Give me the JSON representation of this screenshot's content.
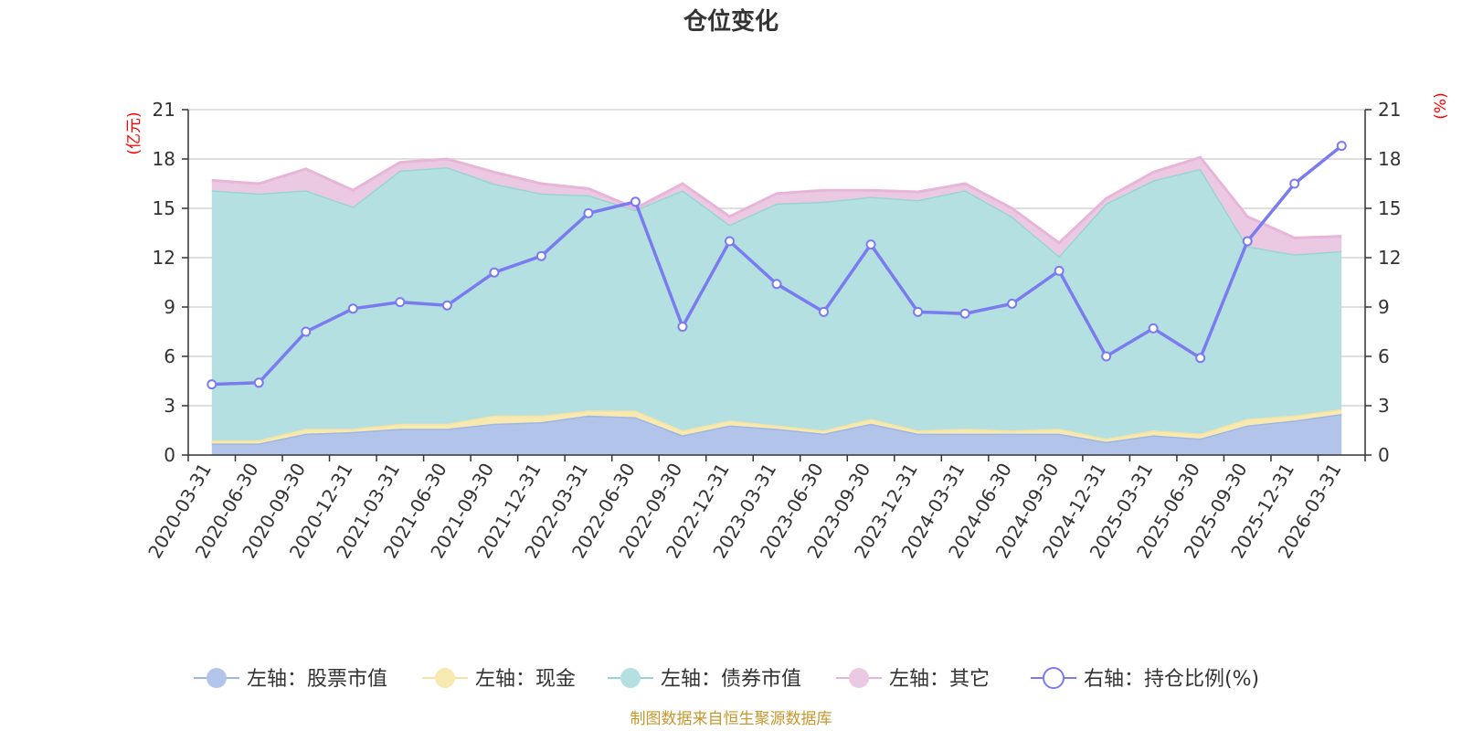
{
  "chart_data": {
    "type": "area",
    "title": "仓位变化",
    "left_axis_unit": "(亿元)",
    "right_axis_unit": "(%)",
    "ylim_left": [
      0,
      21
    ],
    "ylim_right": [
      0,
      21
    ],
    "yticks": [
      0,
      3,
      6,
      9,
      12,
      15,
      18,
      21
    ],
    "categories": [
      "2020-03-31",
      "2020-06-30",
      "2020-09-30",
      "2020-12-31",
      "2021-03-31",
      "2021-06-30",
      "2021-09-30",
      "2021-12-31",
      "2022-03-31",
      "2022-06-30",
      "2022-09-30",
      "2022-12-31",
      "2023-03-31",
      "2023-06-30",
      "2023-09-30",
      "2023-12-31",
      "2024-03-31",
      "2024-06-30",
      "2024-09-30",
      "2024-12-31",
      "2025-03-31",
      "2025-06-30",
      "2025-09-30",
      "2025-12-31",
      "2026-03-31"
    ],
    "series": [
      {
        "name": "左轴：股票市值",
        "axis": "left",
        "color": "#9eb6e3",
        "fill": "#b2c4ea",
        "values": [
          0.7,
          0.7,
          1.3,
          1.4,
          1.6,
          1.6,
          1.9,
          2.0,
          2.4,
          2.3,
          1.2,
          1.8,
          1.6,
          1.3,
          1.9,
          1.3,
          1.3,
          1.3,
          1.3,
          0.8,
          1.2,
          1.0,
          1.8,
          2.1,
          2.5
        ]
      },
      {
        "name": "左轴：现金",
        "axis": "left",
        "color": "#f5e3a4",
        "fill": "#f7e9b0",
        "values": [
          0.2,
          0.2,
          0.3,
          0.2,
          0.3,
          0.3,
          0.5,
          0.4,
          0.3,
          0.4,
          0.3,
          0.3,
          0.2,
          0.2,
          0.3,
          0.2,
          0.3,
          0.2,
          0.3,
          0.2,
          0.3,
          0.3,
          0.4,
          0.3,
          0.3
        ]
      },
      {
        "name": "左轴：债券市值",
        "axis": "left",
        "color": "#98d4d4",
        "fill": "#b4e0e1",
        "values": [
          15.2,
          15.0,
          14.5,
          13.5,
          15.4,
          15.6,
          14.1,
          13.5,
          13.1,
          12.2,
          14.6,
          11.9,
          13.5,
          13.9,
          13.5,
          14.0,
          14.5,
          13.0,
          10.5,
          14.3,
          15.2,
          16.1,
          10.5,
          9.8,
          9.6
        ]
      },
      {
        "name": "左轴：其它",
        "axis": "left",
        "color": "#e6b5d8",
        "fill": "#ecc9e2",
        "values": [
          0.6,
          0.6,
          1.3,
          1.0,
          0.5,
          0.5,
          0.7,
          0.6,
          0.4,
          0.1,
          0.4,
          0.5,
          0.6,
          0.7,
          0.4,
          0.5,
          0.4,
          0.5,
          0.8,
          0.3,
          0.5,
          0.7,
          1.8,
          1.0,
          0.9
        ]
      },
      {
        "name": "右轴：持仓比例(%)",
        "axis": "right",
        "color": "#7b7bf0",
        "values": [
          4.3,
          4.4,
          7.5,
          8.9,
          9.3,
          9.1,
          11.1,
          12.1,
          14.7,
          15.4,
          7.8,
          13.0,
          10.4,
          8.7,
          12.8,
          8.7,
          8.6,
          9.2,
          11.2,
          6.0,
          7.7,
          5.9,
          13.0,
          16.5,
          18.8
        ]
      }
    ],
    "legend_position": "bottom",
    "grid": true
  },
  "source_note": "制图数据来自恒生聚源数据库"
}
